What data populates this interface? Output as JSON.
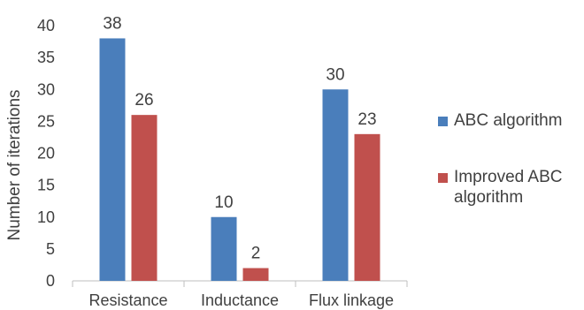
{
  "chart_data": {
    "type": "bar",
    "categories": [
      "Resistance",
      "Inductance",
      "Flux linkage"
    ],
    "series": [
      {
        "name": "ABC algorithm",
        "label_lines": [
          "ABC algorithm"
        ],
        "values": [
          38,
          10,
          30
        ],
        "color": "#4a7ebb"
      },
      {
        "name": "Improved ABC algorithm",
        "label_lines": [
          "Improved ABC",
          "algorithm"
        ],
        "values": [
          26,
          2,
          23
        ],
        "color": "#c0504d"
      }
    ],
    "title": "",
    "xlabel": "",
    "ylabel": "Number of iterations",
    "ylim": [
      0,
      40
    ],
    "yticks": [
      0,
      5,
      10,
      15,
      20,
      25,
      30,
      35,
      40
    ],
    "grid": false,
    "data_labels": true,
    "legend": "right"
  }
}
